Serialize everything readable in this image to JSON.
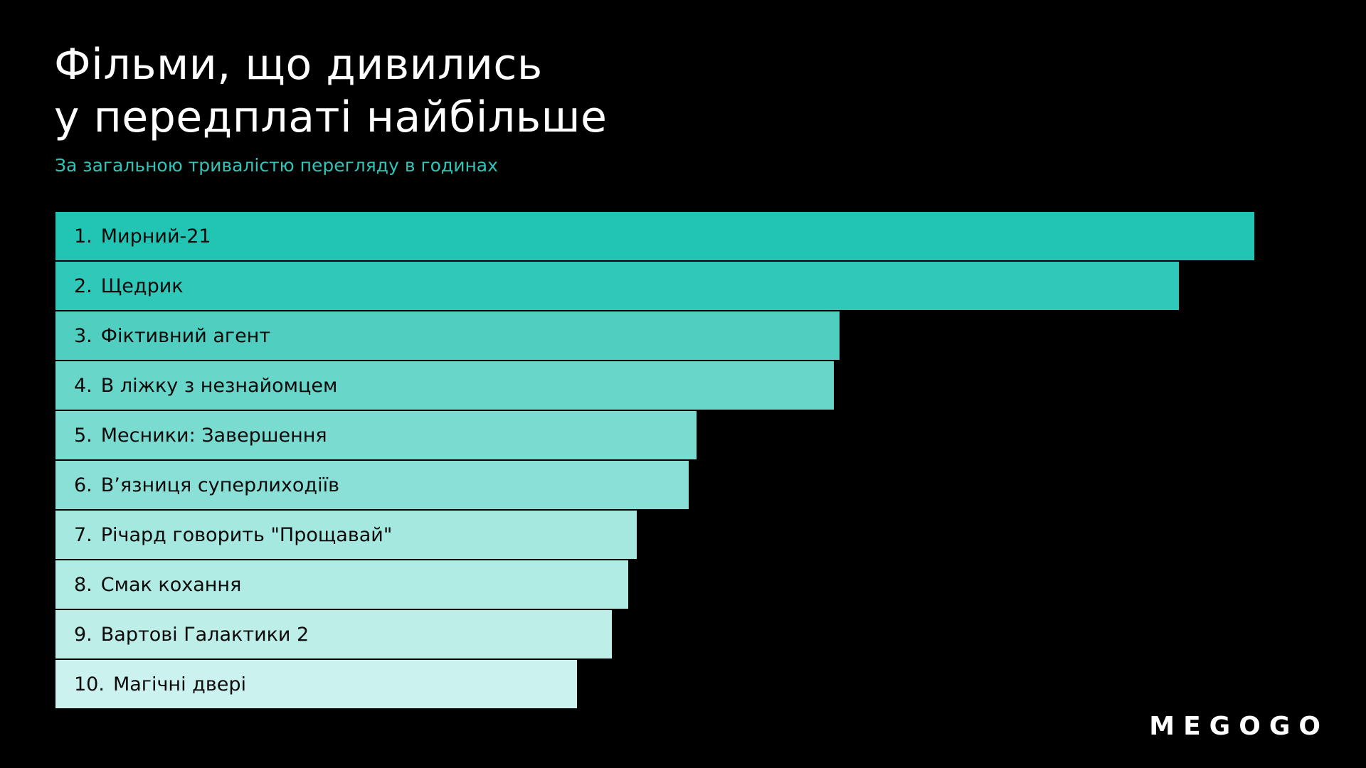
{
  "title_line1": "Фільми, що дивились",
  "title_line2": "у передплаті найбільше",
  "subtitle": "За загальною тривалістю перегляду в годинах",
  "logo": "MEGOGO",
  "colors": {
    "background": "#000000",
    "accent": "#2ec4b6",
    "bar_colors": [
      "#22c4b3",
      "#2fc8b9",
      "#50cfc1",
      "#68d6c9",
      "#7adcd1",
      "#8ae0d7",
      "#a4e8e0",
      "#b0ebe4",
      "#bdeee8",
      "#cbf2ee"
    ]
  },
  "chart_data": {
    "type": "bar",
    "orientation": "horizontal",
    "title": "Фільми, що дивились у передплаті найбільше",
    "subtitle": "За загальною тривалістю перегляду в годинах",
    "categories": [
      "1.",
      "2.",
      "3.",
      "4.",
      "5.",
      "6.",
      "7.",
      "8.",
      "9.",
      "10."
    ],
    "labels": [
      "Мирний-21",
      "Щедрик",
      "Фіктивний агент",
      "В ліжку з незнайомцем",
      "Месники: Завершення",
      "В’язниця суперлиходіїв",
      "Річард говорить \"Прощавай\"",
      "Смак кохання",
      "Вартові Галактики 2",
      "Магічні двері"
    ],
    "values": [
      100,
      93.7,
      65.4,
      64.9,
      53.5,
      52.8,
      48.5,
      47.8,
      46.4,
      43.5
    ],
    "grid": false,
    "legend": "none"
  }
}
